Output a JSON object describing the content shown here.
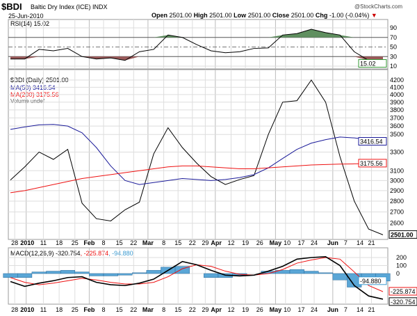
{
  "header": {
    "symbol": "$BDI",
    "name": "Baltic Dry Index (ICE) INDX",
    "brand": "@StockCharts.com",
    "date": "25-Jun-2010",
    "open_label": "Open",
    "open": "2501.00",
    "high_label": "High",
    "high": "2501.00",
    "low_label": "Low",
    "low": "2501.00",
    "close_label": "Close",
    "close": "2501.00",
    "chg_label": "Chg",
    "chg": "-1.00 (-0.04%)",
    "chg_arrow": "▼"
  },
  "legend": {
    "rsi": "RSI(14) 15.02",
    "price": "$BDI (Daily) 2501.00",
    "ma50": "MA(50) 3416.54",
    "ma200": "MA(200) 3175.56",
    "volume": "Volume undef",
    "macd_name": "MACD(12,26,9) -320.754",
    "macd_signal": ", -225.874",
    "macd_hist": ", -94.880"
  },
  "colors": {
    "price": "#000000",
    "ma50": "#1a1a99",
    "ma200": "#ee1111",
    "rsi_over": "#5f8f5f",
    "rsi_under": "#9b5a5a",
    "hist": "#5aa6d6",
    "accent": "#cc0000"
  },
  "chart_data": [
    {
      "type": "area",
      "title": "RSI(14)",
      "yticks": [
        90,
        70,
        50,
        30,
        10
      ],
      "ylim": [
        0,
        100
      ],
      "last_label": "15.02",
      "values": [
        25,
        25,
        45,
        42,
        47,
        30,
        25,
        27,
        22,
        40,
        45,
        75,
        70,
        55,
        42,
        38,
        40,
        47,
        48,
        75,
        78,
        87,
        80,
        75,
        40,
        22,
        15
      ]
    },
    {
      "type": "line",
      "title": "$BDI (Daily)",
      "scale": "log",
      "ylim": [
        2480,
        4300
      ],
      "yticks": [
        4200,
        4100,
        4000,
        3900,
        3800,
        3700,
        3600,
        3500,
        3300,
        3100,
        3000,
        2900,
        2800,
        2700,
        2600
      ],
      "series": [
        {
          "name": "$BDI",
          "last_label": "2501.00",
          "values": [
            3005,
            3140,
            3300,
            3220,
            3330,
            2780,
            2640,
            2620,
            2720,
            2790,
            3280,
            3580,
            3350,
            3180,
            3040,
            2960,
            3010,
            3050,
            3500,
            3900,
            3920,
            4200,
            3900,
            3250,
            2800,
            2550,
            2501
          ]
        },
        {
          "name": "MA(50)",
          "last_label": "3416.54",
          "values": [
            3560,
            3590,
            3615,
            3620,
            3600,
            3520,
            3350,
            3150,
            3000,
            2960,
            2980,
            3000,
            3020,
            3010,
            3000,
            3010,
            3030,
            3060,
            3130,
            3230,
            3330,
            3400,
            3440,
            3470,
            3460,
            3440,
            3417
          ]
        },
        {
          "name": "MA(200)",
          "last_label": "3175.56",
          "values": [
            2880,
            2900,
            2930,
            2960,
            2990,
            3020,
            3040,
            3060,
            3080,
            3100,
            3120,
            3140,
            3150,
            3150,
            3140,
            3130,
            3120,
            3120,
            3130,
            3140,
            3150,
            3160,
            3165,
            3170,
            3172,
            3174,
            3176
          ]
        }
      ]
    },
    {
      "type": "line",
      "title": "MACD(12,26,9)",
      "ylim": [
        -370,
        270
      ],
      "yticks": [
        200,
        100,
        0
      ],
      "macd": [
        -100,
        -160,
        -120,
        -90,
        -50,
        -40,
        -110,
        -140,
        -150,
        -120,
        -70,
        40,
        150,
        110,
        40,
        -20,
        -30,
        -20,
        30,
        90,
        180,
        200,
        210,
        100,
        -150,
        -280,
        -320
      ],
      "signal": [
        -50,
        -110,
        -140,
        -120,
        -90,
        -60,
        -80,
        -110,
        -130,
        -130,
        -110,
        -40,
        60,
        110,
        90,
        30,
        -10,
        -20,
        0,
        50,
        130,
        170,
        200,
        180,
        20,
        -150,
        -226
      ],
      "last_labels": {
        "macd": "-320.754",
        "signal": "-225.874",
        "hist": "-94.880"
      }
    }
  ],
  "xticks": [
    {
      "label": "28",
      "i": 0.3
    },
    {
      "label": "2010",
      "i": 1.1,
      "bold": true
    },
    {
      "label": "11",
      "i": 2.3
    },
    {
      "label": "18",
      "i": 3.4
    },
    {
      "label": "25",
      "i": 4.5
    },
    {
      "label": "Feb",
      "i": 5.5,
      "bold": true
    },
    {
      "label": "8",
      "i": 6.5
    },
    {
      "label": "15",
      "i": 7.6
    },
    {
      "label": "22",
      "i": 8.6
    },
    {
      "label": "Mar",
      "i": 9.6,
      "bold": true
    },
    {
      "label": "8",
      "i": 10.7
    },
    {
      "label": "15",
      "i": 11.7
    },
    {
      "label": "22",
      "i": 12.7
    },
    {
      "label": "29",
      "i": 13.6
    },
    {
      "label": "Apr",
      "i": 14.3,
      "bold": true
    },
    {
      "label": "12",
      "i": 15.4
    },
    {
      "label": "19",
      "i": 16.4
    },
    {
      "label": "26",
      "i": 17.4
    },
    {
      "label": "May",
      "i": 18.5,
      "bold": true
    },
    {
      "label": "10",
      "i": 19.2
    },
    {
      "label": "17",
      "i": 20.3
    },
    {
      "label": "24",
      "i": 21.2
    },
    {
      "label": "Jun",
      "i": 22.5,
      "bold": true
    },
    {
      "label": "7",
      "i": 23.4
    },
    {
      "label": "14",
      "i": 24.4
    },
    {
      "label": "21",
      "i": 25.2
    }
  ]
}
